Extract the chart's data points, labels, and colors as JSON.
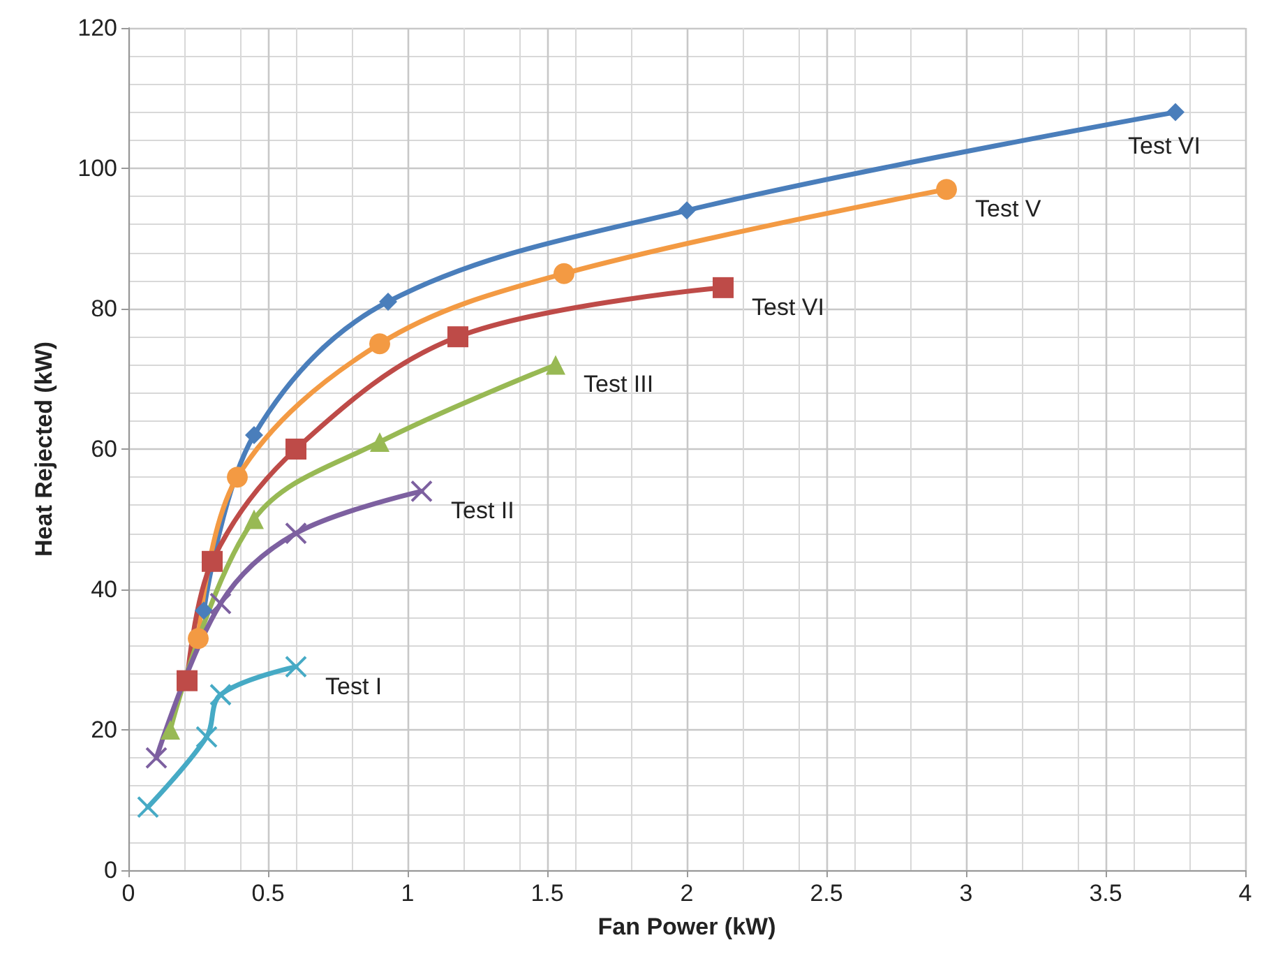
{
  "chart_data": {
    "type": "line",
    "xlabel": "Fan Power (kW)",
    "ylabel": "Heat Rejected (kW)",
    "xlim": [
      0,
      4
    ],
    "xticks": [
      0,
      0.5,
      1,
      1.5,
      2,
      2.5,
      3,
      3.5,
      4
    ],
    "ylim": [
      0,
      120
    ],
    "yticks": [
      0,
      20,
      40,
      60,
      80,
      100,
      120
    ],
    "grid": true,
    "legend": false,
    "series": [
      {
        "name": "Test VI",
        "color": "#4a7ebb",
        "marker": "diamond",
        "x": [
          0.27,
          0.45,
          0.93,
          2.0,
          3.75
        ],
        "values": [
          37,
          62,
          81,
          94,
          108
        ]
      },
      {
        "name": "Test V",
        "color": "#f39a43",
        "marker": "circle",
        "x": [
          0.25,
          0.39,
          0.9,
          1.56,
          2.93
        ],
        "values": [
          33,
          56,
          75,
          85,
          97
        ]
      },
      {
        "name": "Test VI",
        "color": "#be4b48",
        "marker": "square",
        "x": [
          0.21,
          0.3,
          0.6,
          1.18,
          2.13
        ],
        "values": [
          27,
          44,
          60,
          76,
          83
        ]
      },
      {
        "name": "Test III",
        "color": "#98b954",
        "marker": "triangle",
        "x": [
          0.15,
          0.45,
          0.9,
          1.53
        ],
        "values": [
          20,
          50,
          61,
          72
        ]
      },
      {
        "name": "Test II",
        "color": "#7d60a0",
        "marker": "cross",
        "x": [
          0.1,
          0.33,
          0.6,
          1.05
        ],
        "values": [
          16,
          38,
          48,
          54
        ]
      },
      {
        "name": "Test I",
        "color": "#46aac5",
        "marker": "cross",
        "x": [
          0.07,
          0.28,
          0.33,
          0.6
        ],
        "values": [
          9,
          19,
          25,
          29
        ]
      }
    ]
  }
}
